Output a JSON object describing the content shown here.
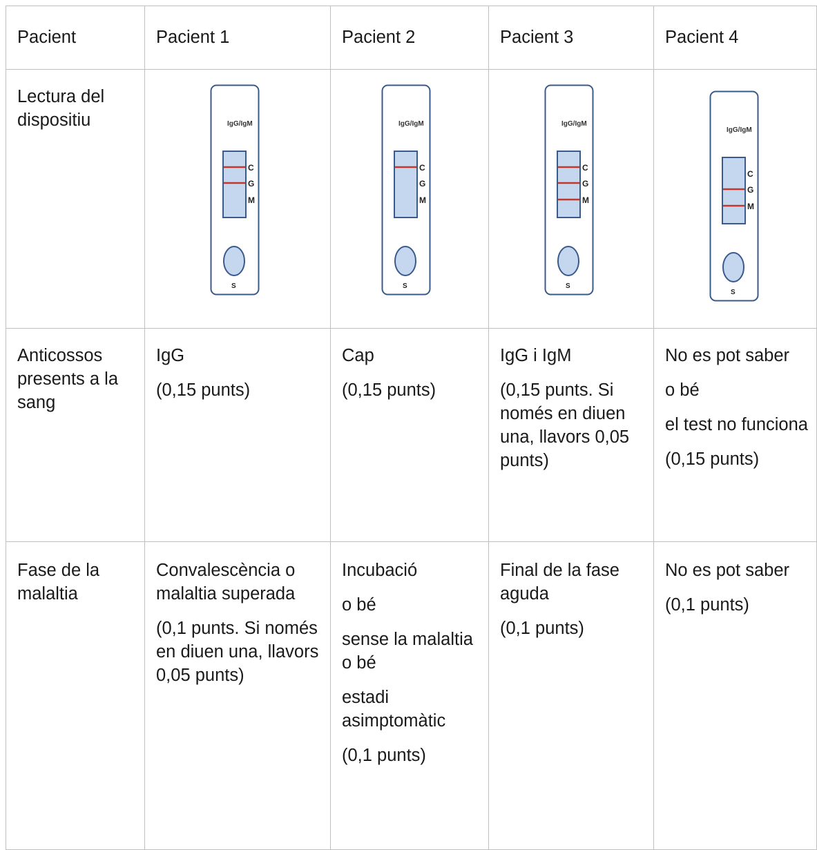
{
  "table": {
    "header": [
      "Pacient",
      "Pacient 1",
      "Pacient 2",
      "Pacient 3",
      "Pacient 4"
    ],
    "rows": [
      {
        "label": "Lectura del dispositiu",
        "devices": [
          {
            "title": "IgG/IgM",
            "lines": {
              "C": true,
              "G": true,
              "M": false
            },
            "labels": {
              "c": "C",
              "g": "G",
              "m": "M",
              "s": "S"
            }
          },
          {
            "title": "IgG/IgM",
            "lines": {
              "C": true,
              "G": false,
              "M": false
            },
            "labels": {
              "c": "C",
              "g": "G",
              "m": "M",
              "s": "S"
            }
          },
          {
            "title": "IgG/IgM",
            "lines": {
              "C": true,
              "G": true,
              "M": true
            },
            "labels": {
              "c": "C",
              "g": "G",
              "m": "M",
              "s": "S"
            }
          },
          {
            "title": "IgG/IgM",
            "lines": {
              "C": false,
              "G": true,
              "M": true
            },
            "labels": {
              "c": "C",
              "g": "G",
              "m": "M",
              "s": "S"
            }
          }
        ]
      },
      {
        "label": "Anticossos presents a la sang",
        "cells": [
          [
            "IgG",
            "(0,15 punts)"
          ],
          [
            "Cap",
            "(0,15 punts)"
          ],
          [
            "IgG i IgM",
            "(0,15 punts. Si només en diuen una, llavors 0,05 punts)"
          ],
          [
            "No es pot saber",
            "o bé",
            "el test no funciona",
            "(0,15 punts)"
          ]
        ]
      },
      {
        "label": "Fase de la malaltia",
        "cells": [
          [
            "Convalescència o malaltia superada",
            "(0,1 punts. Si només en diuen una, llavors 0,05 punts)"
          ],
          [
            "Incubació",
            "o bé",
            "sense la malaltia o bé",
            "estadi asimptomàtic",
            "(0,1 punts)"
          ],
          [
            "Final de la fase aguda",
            "(0,1 punts)"
          ],
          [
            "No es pot saber",
            "(0,1 punts)"
          ]
        ]
      }
    ]
  },
  "colors": {
    "border": "#bfbfbf",
    "device_outline": "#3a5a8c",
    "window_fill": "#c5d6ef",
    "band_red": "#c0392b"
  }
}
